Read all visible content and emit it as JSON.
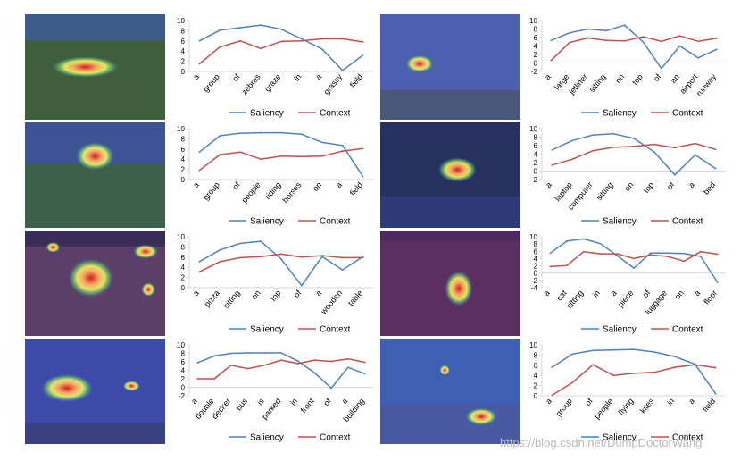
{
  "colors": {
    "saliency": "#4f81bd",
    "context": "#c0504d",
    "axis": "#d9d9d9",
    "text": "#000000"
  },
  "watermark": "https://blog.csdn.net/DumpDoctorWang",
  "chart_data": [
    {
      "type": "line",
      "image": "zebras in grassy field",
      "ylim": [
        0,
        10
      ],
      "yticks": [
        0,
        2,
        4,
        6,
        8,
        10
      ],
      "categories": [
        "a",
        "group",
        "of",
        "zebras",
        "graze",
        "in",
        "a",
        "grassy",
        "field"
      ],
      "series": [
        {
          "name": "Saliency",
          "values": [
            6.0,
            8.1,
            8.6,
            9.1,
            8.3,
            6.4,
            4.4,
            0.2,
            3.2
          ]
        },
        {
          "name": "Context",
          "values": [
            1.5,
            4.8,
            6.0,
            4.5,
            5.9,
            6.0,
            6.4,
            6.4,
            5.8
          ]
        }
      ]
    },
    {
      "type": "line",
      "image": "airplane on runway",
      "ylim": [
        -2,
        10
      ],
      "yticks": [
        -2,
        0,
        2,
        4,
        6,
        8,
        10
      ],
      "categories": [
        "a",
        "large",
        "jetliner",
        "sitting",
        "on",
        "top",
        "of",
        "an",
        "airport",
        "runway"
      ],
      "series": [
        {
          "name": "Saliency",
          "values": [
            5.3,
            7.1,
            8.0,
            7.6,
            8.9,
            5.0,
            -1.3,
            4.0,
            1.2,
            3.2
          ]
        },
        {
          "name": "Context",
          "values": [
            0.6,
            4.8,
            5.9,
            5.3,
            5.2,
            6.2,
            5.1,
            6.4,
            5.1,
            5.8
          ]
        }
      ]
    },
    {
      "type": "line",
      "image": "people riding horses",
      "ylim": [
        0,
        10
      ],
      "yticks": [
        0,
        2,
        4,
        6,
        8,
        10
      ],
      "categories": [
        "a",
        "group",
        "of",
        "people",
        "riding",
        "horses",
        "on",
        "a",
        "field"
      ],
      "series": [
        {
          "name": "Saliency",
          "values": [
            5.4,
            8.6,
            9.1,
            9.2,
            9.2,
            8.9,
            7.3,
            6.7,
            0.6
          ]
        },
        {
          "name": "Context",
          "values": [
            1.8,
            4.9,
            5.4,
            4.0,
            4.6,
            4.5,
            4.6,
            5.6,
            6.1
          ]
        }
      ]
    },
    {
      "type": "line",
      "image": "laptop on bed",
      "ylim": [
        -2,
        10
      ],
      "yticks": [
        -2,
        0,
        2,
        4,
        6,
        8,
        10
      ],
      "categories": [
        "a",
        "laptop",
        "computer",
        "sitting",
        "on",
        "top",
        "of",
        "a",
        "bed"
      ],
      "series": [
        {
          "name": "Saliency",
          "values": [
            5.0,
            7.2,
            8.5,
            8.8,
            7.7,
            4.5,
            -0.9,
            3.8,
            0.6
          ]
        },
        {
          "name": "Context",
          "values": [
            1.4,
            2.8,
            4.8,
            5.6,
            5.8,
            6.3,
            5.5,
            6.5,
            5.1
          ]
        }
      ]
    },
    {
      "type": "line",
      "image": "pizza on wooden table",
      "ylim": [
        0,
        10
      ],
      "yticks": [
        0,
        2,
        4,
        6,
        8,
        10
      ],
      "categories": [
        "a",
        "pizza",
        "sitting",
        "on",
        "top",
        "of",
        "a",
        "wooden",
        "table"
      ],
      "series": [
        {
          "name": "Saliency",
          "values": [
            5.1,
            7.4,
            8.7,
            9.1,
            5.6,
            0.4,
            6.1,
            3.5,
            6.1
          ]
        },
        {
          "name": "Context",
          "values": [
            3.1,
            5.1,
            5.9,
            6.1,
            6.6,
            6.0,
            6.3,
            5.9,
            5.9
          ]
        }
      ]
    },
    {
      "type": "line",
      "image": "cat on luggage",
      "ylim": [
        -4,
        10
      ],
      "yticks": [
        -4,
        -2,
        0,
        2,
        4,
        6,
        8,
        10
      ],
      "categories": [
        "a",
        "cat",
        "sitting",
        "in",
        "a",
        "piece",
        "of",
        "luggage",
        "on",
        "a",
        "floor"
      ],
      "series": [
        {
          "name": "Saliency",
          "values": [
            5.5,
            8.8,
            9.4,
            8.1,
            4.8,
            1.4,
            5.5,
            5.5,
            5.4,
            4.6,
            -2.5
          ]
        },
        {
          "name": "Context",
          "values": [
            1.8,
            2.1,
            5.9,
            5.3,
            5.3,
            4.0,
            5.0,
            4.6,
            3.3,
            5.9,
            5.2
          ]
        }
      ]
    },
    {
      "type": "line",
      "image": "double decker bus",
      "ylim": [
        -2,
        10
      ],
      "yticks": [
        -2,
        0,
        2,
        4,
        6,
        8,
        10
      ],
      "categories": [
        "a",
        "double",
        "decker",
        "bus",
        "is",
        "parked",
        "in",
        "front",
        "of",
        "a",
        "building"
      ],
      "series": [
        {
          "name": "Saliency",
          "values": [
            5.8,
            7.4,
            8.0,
            8.1,
            8.1,
            8.1,
            6.2,
            3.4,
            -0.2,
            4.7,
            3.2
          ]
        },
        {
          "name": "Context",
          "values": [
            2.0,
            2.0,
            5.2,
            4.4,
            5.2,
            6.4,
            5.6,
            6.4,
            6.1,
            6.7,
            5.9
          ]
        }
      ]
    },
    {
      "type": "line",
      "image": "people flying kites",
      "ylim": [
        0,
        10
      ],
      "yticks": [
        0,
        2,
        4,
        6,
        8,
        10
      ],
      "categories": [
        "a",
        "group",
        "of",
        "people",
        "flying",
        "kites",
        "in",
        "a",
        "field"
      ],
      "series": [
        {
          "name": "Saliency",
          "values": [
            5.6,
            8.2,
            8.9,
            9.0,
            9.1,
            8.6,
            7.7,
            6.2,
            0.4
          ]
        },
        {
          "name": "Context",
          "values": [
            0.1,
            2.6,
            6.1,
            4.0,
            4.4,
            4.6,
            5.6,
            6.1,
            5.5
          ]
        }
      ]
    }
  ]
}
